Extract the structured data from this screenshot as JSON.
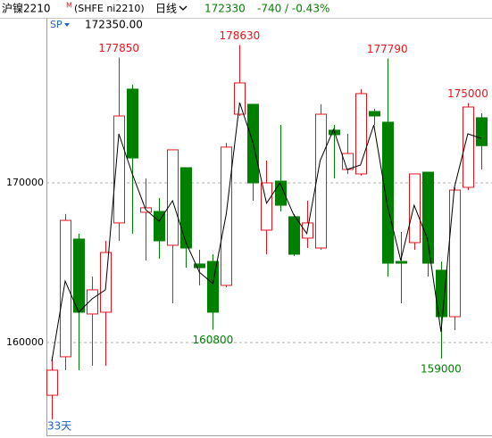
{
  "header": {
    "symbol": "沪镍2210",
    "symbol_mark": "M",
    "code": "(SHFE ni2210)",
    "period": "日线",
    "last": 172330,
    "change": "-740 / -0.43%",
    "sp_label": "SP",
    "sp_value": "172350.00",
    "span": "33天"
  },
  "chart_data": {
    "type": "candlestick",
    "open": [
      156700,
      159110,
      166480,
      161790,
      161900,
      167490,
      175870,
      168160,
      168210,
      166090,
      170950,
      164920,
      165080,
      163580,
      174300,
      174920,
      167040,
      170110,
      167880,
      166540,
      165920,
      173300,
      170840,
      170560,
      174470,
      173800,
      165080,
      166260,
      170670,
      164530,
      161620,
      169720,
      174080
    ],
    "high": [
      159110,
      168050,
      166820,
      164130,
      166370,
      177850,
      176150,
      170280,
      169050,
      172070,
      170950,
      165810,
      165530,
      172510,
      178630,
      174920,
      171400,
      173630,
      168050,
      168880,
      174920,
      173630,
      173070,
      175870,
      174640,
      177790,
      166930,
      170560,
      170670,
      165080,
      169720,
      175000,
      174360
    ],
    "low": [
      155190,
      158270,
      158270,
      158550,
      158550,
      166370,
      166820,
      165140,
      165250,
      162460,
      164690,
      163580,
      160800,
      163460,
      174190,
      168880,
      165530,
      168210,
      165420,
      165920,
      165810,
      170280,
      170560,
      170450,
      173630,
      164130,
      162460,
      165810,
      164130,
      159000,
      160780,
      169550,
      170840
    ],
    "close": [
      158270,
      167650,
      161900,
      163300,
      165640,
      174190,
      171560,
      168440,
      166370,
      172070,
      165920,
      164690,
      161900,
      172240,
      176260,
      170000,
      170000,
      168600,
      165530,
      167490,
      174300,
      173020,
      171840,
      175590,
      174190,
      164970,
      164970,
      170560,
      164970,
      161620,
      169550,
      174750,
      172330
    ],
    "line": [
      158830,
      163850,
      161900,
      162740,
      163300,
      173070,
      170560,
      168320,
      167600,
      168880,
      166260,
      164410,
      163690,
      168050,
      175030,
      172510,
      168720,
      170000,
      168050,
      166820,
      171400,
      173350,
      170840,
      171120,
      173630,
      168600,
      165140,
      168600,
      166480,
      160670,
      169720,
      173070,
      172790
    ],
    "up_color": "#e8141c",
    "down_color": "#008000",
    "line_color": "#000000",
    "ylim": [
      154190,
      180335
    ],
    "yticks": [
      160000,
      170000
    ],
    "grid": true
  }
}
